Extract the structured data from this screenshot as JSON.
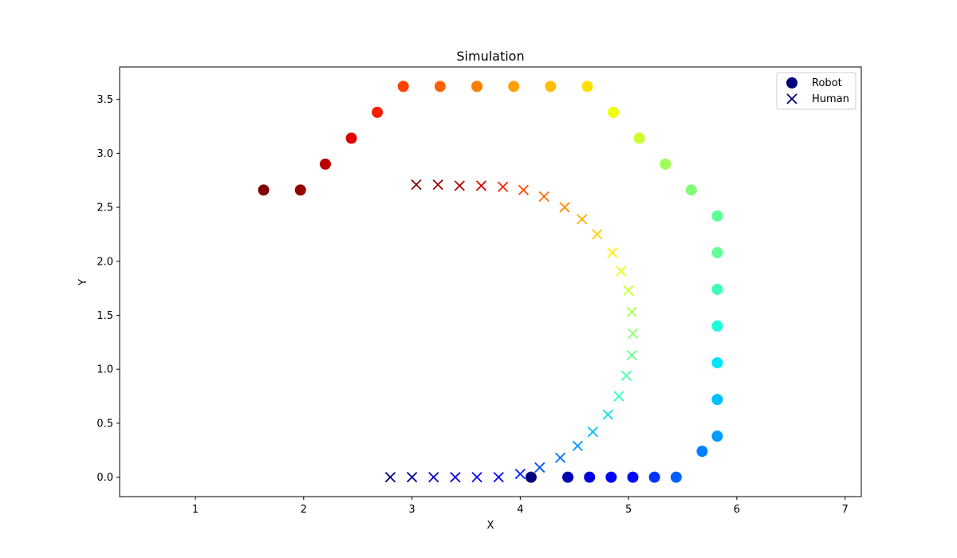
{
  "chart_data": {
    "type": "scatter",
    "title": "Simulation",
    "xlabel": "X",
    "ylabel": "Y",
    "xlim": [
      0.3,
      7.15
    ],
    "ylim": [
      -0.18,
      3.8
    ],
    "xticks": [
      1,
      2,
      3,
      4,
      5,
      6,
      7
    ],
    "yticks": [
      0.0,
      0.5,
      1.0,
      1.5,
      2.0,
      2.5,
      3.0,
      3.5
    ],
    "xtick_labels": [
      "1",
      "2",
      "3",
      "4",
      "5",
      "6",
      "7"
    ],
    "ytick_labels": [
      "0.0",
      "0.5",
      "1.0",
      "1.5",
      "2.0",
      "2.5",
      "3.0",
      "3.5"
    ],
    "grid": false,
    "legend_position": "top-right",
    "colormap": "jet",
    "series": [
      {
        "name": "Robot",
        "marker": "circle",
        "legend_color": "#00007f",
        "x": [
          4.1,
          4.44,
          4.64,
          4.84,
          5.04,
          5.24,
          5.44,
          5.68,
          5.82,
          5.82,
          5.82,
          5.82,
          5.82,
          5.82,
          5.82,
          5.82,
          5.58,
          5.34,
          5.1,
          4.86,
          4.62,
          4.28,
          3.94,
          3.6,
          3.26,
          2.92,
          2.68,
          2.44,
          2.2,
          1.97,
          1.63
        ],
        "y": [
          0.0,
          0.0,
          0.0,
          0.0,
          0.0,
          0.0,
          0.0,
          0.24,
          0.38,
          0.72,
          1.06,
          1.4,
          1.74,
          2.08,
          2.42,
          2.42,
          2.66,
          2.9,
          3.14,
          3.38,
          3.62,
          3.62,
          3.62,
          3.62,
          3.62,
          3.62,
          3.38,
          3.14,
          2.9,
          2.66,
          2.66
        ],
        "colors": [
          "#00007f",
          "#0000b2",
          "#0000e0",
          "#0000ff",
          "#0008ff",
          "#0034ff",
          "#0060ff",
          "#0080ff",
          "#009cff",
          "#00c0ff",
          "#00e4f8",
          "#1cffda",
          "#40ffb7",
          "#60ff96",
          "#60ff96",
          "#60ff96",
          "#80ff77",
          "#a0ff56",
          "#caff2c",
          "#eeff09",
          "#ffdf00",
          "#ffbe00",
          "#ff9f00",
          "#ff7d00",
          "#ff6100",
          "#ff4100",
          "#f91e00",
          "#e00000",
          "#b80000",
          "#990000",
          "#800000"
        ]
      },
      {
        "name": "Human",
        "marker": "x",
        "legend_color": "#00007f",
        "x": [
          2.8,
          3.0,
          3.2,
          3.4,
          3.6,
          3.8,
          4.0,
          4.18,
          4.37,
          4.53,
          4.67,
          4.81,
          4.91,
          4.98,
          5.03,
          5.04,
          5.03,
          5.0,
          4.93,
          4.85,
          4.71,
          4.57,
          4.41,
          4.22,
          4.03,
          3.84,
          3.64,
          3.44,
          3.24,
          3.04
        ],
        "y": [
          0.0,
          0.0,
          0.0,
          0.0,
          0.0,
          0.0,
          0.03,
          0.09,
          0.18,
          0.29,
          0.42,
          0.58,
          0.75,
          0.94,
          1.13,
          1.33,
          1.53,
          1.73,
          1.91,
          2.08,
          2.25,
          2.39,
          2.5,
          2.6,
          2.66,
          2.69,
          2.7,
          2.7,
          2.71,
          2.71
        ],
        "colors": [
          "#00007f",
          "#0000a0",
          "#0000c4",
          "#0000e8",
          "#0000ff",
          "#0008ff",
          "#0028ff",
          "#0050ff",
          "#0074ff",
          "#0098ff",
          "#00bcff",
          "#0cdcf0",
          "#30ffc7",
          "#50ffa6",
          "#6cff89",
          "#8cff6a",
          "#a8ff4e",
          "#c8ff2e",
          "#e8ff0e",
          "#fff200",
          "#ffd000",
          "#ffae00",
          "#ff8c00",
          "#ff6a00",
          "#ff4800",
          "#f42600",
          "#d40000",
          "#b20000",
          "#990000",
          "#800000"
        ]
      }
    ]
  }
}
